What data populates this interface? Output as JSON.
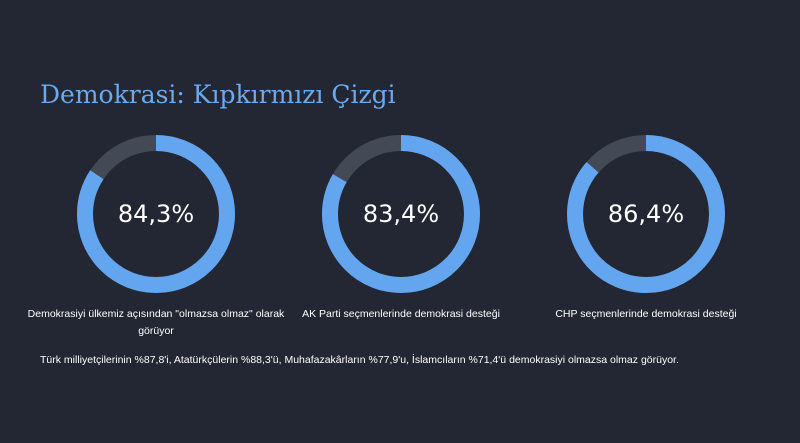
{
  "title": "Demokrasi: Kıpkırmızı Çizgi",
  "colors": {
    "background": "#222733",
    "accent": "#64a5f0",
    "track": "#434955",
    "text": "#ffffff"
  },
  "chart_data": {
    "type": "pie",
    "unit": "%",
    "items": [
      {
        "value": 84.3,
        "value_label": "84,3%",
        "label": "Demokrasiyi ülkemiz açısından \"olmazsa olmaz\" olarak görüyor"
      },
      {
        "value": 83.4,
        "value_label": "83,4%",
        "label": "AK Parti seçmenlerinde demokrasi desteği"
      },
      {
        "value": 86.4,
        "value_label": "86,4%",
        "label": "CHP seçmenlerinde demokrasi desteği"
      }
    ]
  },
  "footnote": "Türk milliyetçilerinin %87,8'i, Atatürkçülerin %88,3'ü, Muhafazakârların %77,9'u, İslamcıların %71,4'ü demokrasiyi olmazsa olmaz görüyor."
}
